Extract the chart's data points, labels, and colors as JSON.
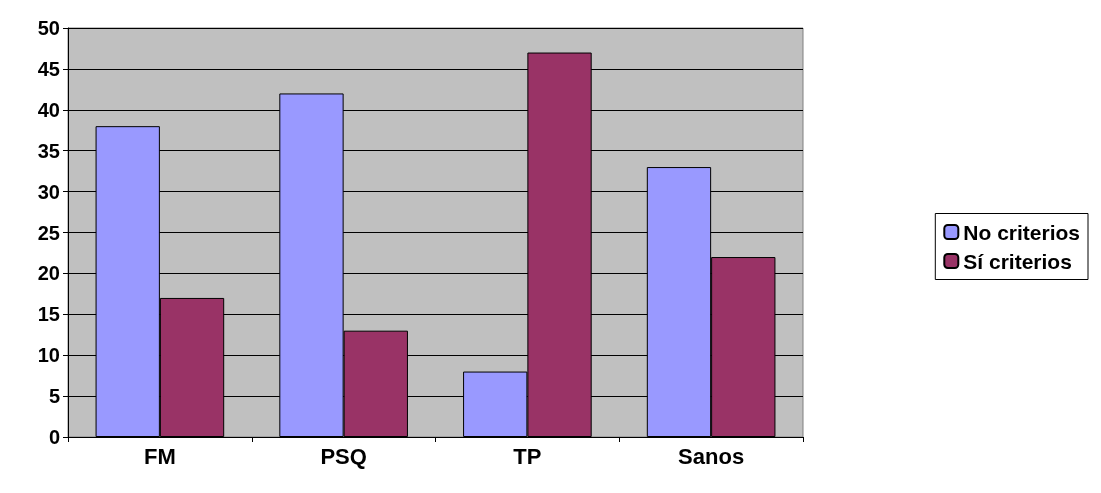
{
  "chart_data": {
    "type": "bar",
    "categories": [
      "FM",
      "PSQ",
      "TP",
      "Sanos"
    ],
    "series": [
      {
        "name": "No criterios",
        "color": "#9999ff",
        "values": [
          38,
          42,
          8,
          33
        ]
      },
      {
        "name": "Sí criterios",
        "color": "#993366",
        "values": [
          17,
          13,
          47,
          22
        ]
      }
    ],
    "ylim": [
      0,
      50
    ],
    "yticks": [
      0,
      5,
      10,
      15,
      20,
      25,
      30,
      35,
      40,
      45,
      50
    ],
    "grid": "y",
    "legend": "right"
  }
}
